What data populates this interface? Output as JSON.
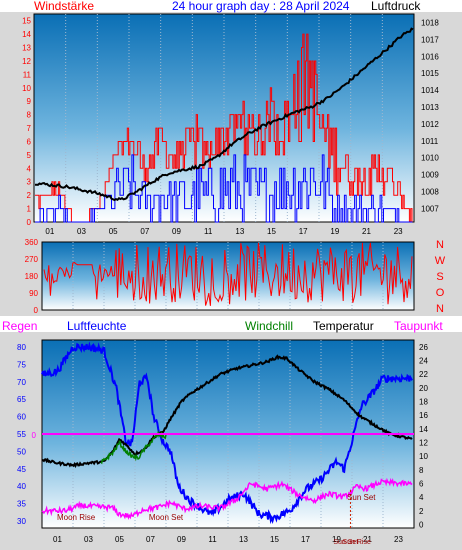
{
  "header": {
    "left_label": "Windstärke",
    "title": "24 hour graph day : 28 April 2024",
    "right_label": "Luftdruck"
  },
  "colors": {
    "background": "#ffffff",
    "frame": "#d8d8d8",
    "plot_top": "#0a73b8",
    "plot_bottom": "#ffffff",
    "wind": "#ff0000",
    "wind_avg": "#0000ff",
    "pressure": "#000000",
    "direction": "#ff0000",
    "humidity": "#0000ff",
    "temperature": "#000000",
    "windchill": "#008000",
    "dewpoint": "#ff00ff",
    "rain": "#ff00ff",
    "sun_marker": "#cc2200"
  },
  "chart_data": [
    {
      "id": "wind_pressure",
      "type": "line",
      "title": "24 hour graph day : 28 April 2024",
      "left_axis_label": "Windstärke",
      "right_axis_label": "Luftdruck",
      "x_ticks": [
        "01",
        "03",
        "05",
        "07",
        "09",
        "11",
        "13",
        "15",
        "17",
        "19",
        "21",
        "23"
      ],
      "left_ticks": [
        "1",
        "2",
        "3",
        "4",
        "5",
        "6",
        "7",
        "8",
        "9",
        "10",
        "11",
        "12",
        "13",
        "14",
        "15",
        "0"
      ],
      "right_ticks": [
        "1018",
        "1017",
        "1016",
        "1015",
        "1014",
        "1013",
        "1012",
        "1011",
        "1010",
        "1009",
        "1008",
        "1007"
      ],
      "left_range": [
        0,
        15.5
      ],
      "right_range": [
        1006.2,
        1018.5
      ],
      "pressure_points": [
        [
          0.0,
          1008.5
        ],
        [
          1.0,
          1008.4
        ],
        [
          2.0,
          1008.3
        ],
        [
          3.0,
          1008.1
        ],
        [
          4.0,
          1007.9
        ],
        [
          5.0,
          1007.6
        ],
        [
          5.5,
          1007.5
        ],
        [
          6.5,
          1008.0
        ],
        [
          7.5,
          1008.6
        ],
        [
          8.5,
          1009.1
        ],
        [
          9.5,
          1009.3
        ],
        [
          10.5,
          1009.5
        ],
        [
          11.5,
          1010.0
        ],
        [
          12.5,
          1010.8
        ],
        [
          13.5,
          1011.4
        ],
        [
          14.5,
          1011.9
        ],
        [
          15.5,
          1012.3
        ],
        [
          16.5,
          1012.7
        ],
        [
          17.5,
          1013.0
        ],
        [
          18.5,
          1013.5
        ],
        [
          19.5,
          1014.2
        ],
        [
          20.5,
          1015.0
        ],
        [
          21.5,
          1015.8
        ],
        [
          22.5,
          1016.6
        ],
        [
          23.2,
          1017.2
        ],
        [
          23.9,
          1017.6
        ]
      ],
      "wind_gust_envelope": [
        [
          0.0,
          2
        ],
        [
          1.5,
          3
        ],
        [
          2.5,
          0
        ],
        [
          3.0,
          0
        ],
        [
          4.0,
          1
        ],
        [
          5.0,
          5
        ],
        [
          6.0,
          8
        ],
        [
          7.0,
          5
        ],
        [
          8.0,
          8
        ],
        [
          9.0,
          6
        ],
        [
          10.0,
          8
        ],
        [
          11.0,
          6
        ],
        [
          12.0,
          8
        ],
        [
          13.0,
          9
        ],
        [
          14.0,
          8
        ],
        [
          15.0,
          10
        ],
        [
          16.0,
          9
        ],
        [
          17.0,
          14
        ],
        [
          17.6,
          15
        ],
        [
          18.0,
          9
        ],
        [
          19.0,
          8
        ],
        [
          20.0,
          5
        ],
        [
          21.0,
          4
        ],
        [
          22.0,
          6
        ],
        [
          23.0,
          3
        ],
        [
          23.9,
          1
        ]
      ],
      "wind_avg_envelope": [
        [
          0.0,
          1
        ],
        [
          1.5,
          2
        ],
        [
          2.5,
          0
        ],
        [
          3.0,
          0
        ],
        [
          4.0,
          1
        ],
        [
          5.0,
          4
        ],
        [
          6.0,
          5
        ],
        [
          7.0,
          3
        ],
        [
          8.0,
          4
        ],
        [
          9.0,
          3
        ],
        [
          10.0,
          4
        ],
        [
          11.0,
          4
        ],
        [
          12.0,
          5
        ],
        [
          13.0,
          5
        ],
        [
          14.0,
          4
        ],
        [
          15.0,
          5
        ],
        [
          16.0,
          5
        ],
        [
          17.0,
          6
        ],
        [
          18.0,
          6
        ],
        [
          19.0,
          2
        ],
        [
          20.0,
          2
        ],
        [
          21.0,
          2
        ],
        [
          22.0,
          2
        ],
        [
          23.0,
          1
        ],
        [
          23.9,
          0
        ]
      ]
    },
    {
      "id": "wind_direction",
      "type": "line",
      "y_ticks": [
        "360",
        "270",
        "180",
        "90",
        "0"
      ],
      "y_range": [
        0,
        360
      ],
      "compass": [
        "N",
        "W",
        "S",
        "O",
        "N"
      ],
      "direction_band": [
        180,
        320
      ]
    },
    {
      "id": "temp_humidity",
      "type": "line",
      "series_labels": [
        "Regen",
        "Luftfeuchte",
        "Windchill",
        "Temperatur",
        "Taupunkt"
      ],
      "left_ticks": [
        "80",
        "75",
        "70",
        "65",
        "60",
        "55",
        "50",
        "45",
        "40",
        "35",
        "30"
      ],
      "left_range": [
        28,
        82
      ],
      "right_ticks": [
        "26",
        "24",
        "22",
        "20",
        "18",
        "16",
        "14",
        "12",
        "10",
        "8",
        "6",
        "4",
        "2",
        "0"
      ],
      "right_range": [
        -0.5,
        27
      ],
      "x_ticks": [
        "01",
        "03",
        "05",
        "07",
        "09",
        "11",
        "13",
        "15",
        "17",
        "19",
        "21",
        "23"
      ],
      "rain_label": "0",
      "annotations": [
        "Moon Rise",
        "Moon Set",
        "Sun Set",
        "Sun Set",
        "Sun Rise"
      ],
      "humidity_points": [
        [
          0.0,
          72
        ],
        [
          1.0,
          73
        ],
        [
          2.0,
          80
        ],
        [
          3.0,
          80
        ],
        [
          4.0,
          79
        ],
        [
          4.8,
          68
        ],
        [
          5.4,
          53
        ],
        [
          5.8,
          52
        ],
        [
          6.3,
          70
        ],
        [
          6.8,
          71
        ],
        [
          7.2,
          60
        ],
        [
          7.8,
          53
        ],
        [
          8.3,
          50
        ],
        [
          8.8,
          40
        ],
        [
          9.5,
          36
        ],
        [
          10.5,
          33
        ],
        [
          11.0,
          32
        ],
        [
          12.0,
          36
        ],
        [
          13.0,
          38
        ],
        [
          14.0,
          32
        ],
        [
          15.0,
          31
        ],
        [
          16.0,
          33
        ],
        [
          17.0,
          39
        ],
        [
          18.0,
          42
        ],
        [
          19.0,
          47
        ],
        [
          19.5,
          45
        ],
        [
          20.0,
          53
        ],
        [
          20.6,
          63
        ],
        [
          21.2,
          66
        ],
        [
          22.0,
          71
        ],
        [
          23.9,
          71
        ]
      ],
      "temperature_points": [
        [
          0.0,
          9.5
        ],
        [
          1.0,
          9.0
        ],
        [
          2.0,
          8.7
        ],
        [
          3.0,
          9.0
        ],
        [
          4.0,
          9.2
        ],
        [
          4.6,
          10.8
        ],
        [
          5.0,
          12.5
        ],
        [
          5.5,
          11.5
        ],
        [
          6.0,
          10.3
        ],
        [
          6.6,
          11.0
        ],
        [
          7.2,
          12.8
        ],
        [
          7.8,
          13.5
        ],
        [
          8.3,
          15.5
        ],
        [
          9.0,
          18.0
        ],
        [
          9.6,
          19.2
        ],
        [
          10.5,
          20.5
        ],
        [
          11.5,
          22.0
        ],
        [
          12.5,
          22.8
        ],
        [
          13.5,
          23.3
        ],
        [
          14.5,
          23.8
        ],
        [
          15.2,
          24.5
        ],
        [
          15.8,
          24.3
        ],
        [
          16.5,
          22.8
        ],
        [
          17.5,
          21.0
        ],
        [
          18.5,
          19.8
        ],
        [
          19.5,
          18.2
        ],
        [
          20.5,
          15.9
        ],
        [
          21.5,
          14.5
        ],
        [
          22.5,
          13.2
        ],
        [
          23.9,
          12.5
        ]
      ],
      "windchill_points": [
        [
          3.8,
          9.0
        ],
        [
          4.2,
          9.8
        ],
        [
          4.6,
          10.6
        ],
        [
          5.0,
          12.0
        ],
        [
          5.3,
          11.0
        ],
        [
          5.8,
          10.0
        ],
        [
          6.2,
          9.7
        ],
        [
          6.6,
          11.0
        ],
        [
          7.0,
          12.0
        ],
        [
          7.5,
          13.2
        ],
        [
          8.0,
          12.8
        ]
      ],
      "dewpoint_points": [
        [
          0.0,
          2.0
        ],
        [
          1.5,
          2.0
        ],
        [
          2.5,
          2.8
        ],
        [
          3.5,
          2.6
        ],
        [
          4.5,
          2.5
        ],
        [
          5.0,
          1.5
        ],
        [
          5.8,
          1.2
        ],
        [
          6.5,
          2.2
        ],
        [
          7.5,
          2.5
        ],
        [
          8.3,
          3.2
        ],
        [
          9.2,
          2.3
        ],
        [
          10.2,
          2.7
        ],
        [
          11.5,
          2.4
        ],
        [
          12.5,
          3.6
        ],
        [
          13.5,
          6.0
        ],
        [
          14.5,
          5.2
        ],
        [
          15.5,
          5.9
        ],
        [
          16.5,
          4.4
        ],
        [
          17.5,
          3.5
        ],
        [
          18.5,
          4.5
        ],
        [
          19.5,
          4.0
        ],
        [
          20.3,
          5.5
        ],
        [
          21.0,
          5.3
        ],
        [
          21.8,
          6.2
        ],
        [
          22.6,
          6.1
        ],
        [
          23.9,
          5.9
        ]
      ]
    }
  ]
}
